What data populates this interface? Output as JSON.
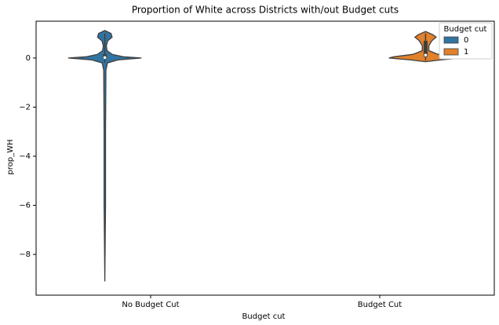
{
  "chart_data": {
    "type": "violin",
    "title": "Proportion of White across Districts with/out Budget cuts",
    "x_label": "Budget cut",
    "y_label": "prop_WH",
    "categories": [
      "No Budget Cut",
      "Budget Cut"
    ],
    "ylim": [
      -9.66,
      1.5
    ],
    "yticks": [
      {
        "value": -8,
        "label": "−8"
      },
      {
        "value": -6,
        "label": "−6"
      },
      {
        "value": -4,
        "label": "−4"
      },
      {
        "value": -2,
        "label": "−2"
      },
      0
    ],
    "legend": {
      "title": "Budget cut",
      "position": "upper right"
    },
    "series": [
      {
        "name": "0",
        "color": "#3274a1",
        "violins": [
          {
            "y": [
              1.12,
              1.0,
              0.85,
              0.7,
              0.5,
              0.3,
              0.15,
              0.05,
              0.0,
              -0.08,
              -0.2,
              -0.5,
              -3,
              -6,
              -9.1
            ],
            "density": [
              0,
              0.17,
              0.2,
              0.08,
              0.04,
              0.06,
              0.2,
              0.5,
              1.0,
              0.35,
              0.07,
              0.03,
              0.02,
              0.02,
              0
            ],
            "box": [
              -0.02,
              0.02,
              0.15
            ],
            "whisker": [
              -0.2,
              1.0
            ]
          },
          null
        ]
      },
      {
        "name": "1",
        "color": "#e1812c",
        "violins": [
          null,
          {
            "y": [
              1.08,
              0.95,
              0.85,
              0.7,
              0.5,
              0.3,
              0.15,
              0.05,
              0.0,
              -0.08,
              -0.15
            ],
            "density": [
              0,
              0.2,
              0.29,
              0.17,
              0.09,
              0.09,
              0.34,
              0.86,
              1.0,
              0.4,
              0
            ],
            "box": [
              0.05,
              0.12,
              0.7
            ],
            "whisker": [
              -0.1,
              1.0
            ]
          }
        ]
      }
    ]
  }
}
